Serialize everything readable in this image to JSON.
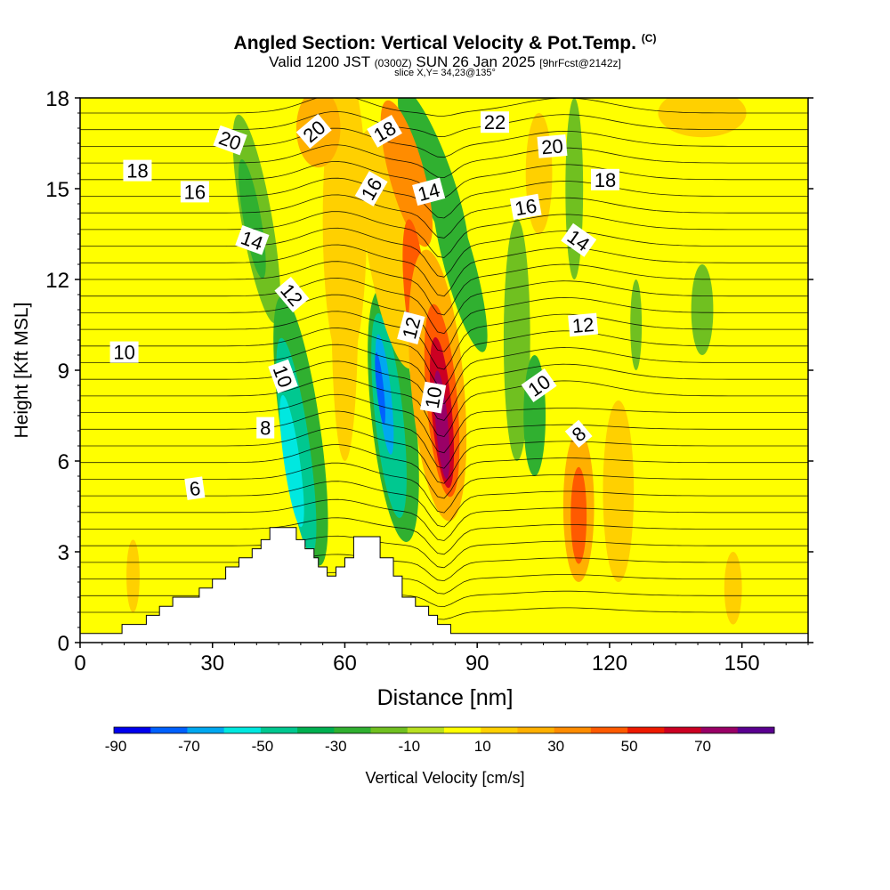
{
  "title": {
    "main": "Angled Section: Vertical Velocity & Pot.Temp.",
    "main_suffix": "(C)",
    "valid_prefix": "Valid 1200 JST",
    "valid_zulu": "(0300Z)",
    "valid_date": "SUN 26 Jan 2025",
    "forecast": "[9hrFcst@2142z]",
    "slice": "slice X,Y= 34,23@135°"
  },
  "chart_data": {
    "type": "heatmap",
    "xlabel": "Distance [nm]",
    "ylabel": "Height [Kft MSL]",
    "xlim": [
      0,
      165
    ],
    "ylim": [
      0,
      18
    ],
    "x_ticks": [
      0,
      30,
      60,
      90,
      120,
      150
    ],
    "y_ticks": [
      0,
      3,
      6,
      9,
      12,
      15,
      18
    ],
    "colorbar": {
      "label": "Vertical Velocity [cm/s]",
      "levels": [
        -90,
        -80,
        -70,
        -60,
        -50,
        -40,
        -30,
        -20,
        -10,
        0,
        10,
        20,
        30,
        40,
        50,
        60,
        70,
        80
      ],
      "tick_labels": [
        -90,
        -70,
        -50,
        -30,
        -10,
        10,
        30,
        50,
        70
      ],
      "colors": [
        "#0000ee",
        "#0060ff",
        "#00a8f0",
        "#00e8e0",
        "#00c890",
        "#00b050",
        "#30b030",
        "#70c020",
        "#b8e020",
        "#ffff00",
        "#ffd000",
        "#ffb000",
        "#ff8c00",
        "#ff5a00",
        "#ee1a00",
        "#cc0022",
        "#990066",
        "#5a0090"
      ]
    },
    "terrain": [
      [
        0,
        0.3
      ],
      [
        9.5,
        0.3
      ],
      [
        9.5,
        0.6
      ],
      [
        15,
        0.6
      ],
      [
        15,
        0.9
      ],
      [
        18,
        0.9
      ],
      [
        18,
        1.2
      ],
      [
        21,
        1.2
      ],
      [
        21,
        1.5
      ],
      [
        27,
        1.5
      ],
      [
        27,
        1.8
      ],
      [
        30,
        1.8
      ],
      [
        30,
        2.1
      ],
      [
        33,
        2.1
      ],
      [
        33,
        2.5
      ],
      [
        36,
        2.5
      ],
      [
        36,
        2.8
      ],
      [
        39,
        2.8
      ],
      [
        39,
        3.1
      ],
      [
        41,
        3.1
      ],
      [
        41,
        3.4
      ],
      [
        43,
        3.4
      ],
      [
        43,
        3.8
      ],
      [
        49,
        3.8
      ],
      [
        49,
        3.4
      ],
      [
        51,
        3.4
      ],
      [
        51,
        3.1
      ],
      [
        53,
        3.1
      ],
      [
        53,
        2.8
      ],
      [
        54,
        2.8
      ],
      [
        54,
        2.5
      ],
      [
        56,
        2.5
      ],
      [
        56,
        2.2
      ],
      [
        58,
        2.2
      ],
      [
        58,
        2.5
      ],
      [
        60,
        2.5
      ],
      [
        60,
        2.8
      ],
      [
        62,
        2.8
      ],
      [
        62,
        3.5
      ],
      [
        68,
        3.5
      ],
      [
        68,
        2.8
      ],
      [
        71,
        2.8
      ],
      [
        71,
        2.2
      ],
      [
        73,
        2.2
      ],
      [
        73,
        1.5
      ],
      [
        76,
        1.5
      ],
      [
        76,
        1.2
      ],
      [
        79,
        1.2
      ],
      [
        79,
        0.9
      ],
      [
        81,
        0.9
      ],
      [
        81,
        0.6
      ],
      [
        84,
        0.6
      ],
      [
        84,
        0.3
      ],
      [
        165,
        0.3
      ]
    ],
    "theta_contour_labels": [
      {
        "text": "6",
        "x": 26,
        "y": 5.1,
        "angle": -8
      },
      {
        "text": "8",
        "x": 42,
        "y": 7.1,
        "angle": 0
      },
      {
        "text": "8",
        "x": 113,
        "y": 6.9,
        "angle": -40
      },
      {
        "text": "10",
        "x": 10,
        "y": 9.6,
        "angle": 0
      },
      {
        "text": "10",
        "x": 46,
        "y": 8.8,
        "angle": 70
      },
      {
        "text": "10",
        "x": 80,
        "y": 8.1,
        "angle": -80
      },
      {
        "text": "10",
        "x": 104,
        "y": 8.5,
        "angle": -35
      },
      {
        "text": "12",
        "x": 48,
        "y": 11.5,
        "angle": 50
      },
      {
        "text": "12",
        "x": 75,
        "y": 10.4,
        "angle": -75
      },
      {
        "text": "12",
        "x": 114,
        "y": 10.5,
        "angle": -5
      },
      {
        "text": "14",
        "x": 39,
        "y": 13.3,
        "angle": 20
      },
      {
        "text": "14",
        "x": 79,
        "y": 14.9,
        "angle": -15
      },
      {
        "text": "14",
        "x": 113,
        "y": 13.3,
        "angle": 35
      },
      {
        "text": "16",
        "x": 26,
        "y": 14.9,
        "angle": 0
      },
      {
        "text": "16",
        "x": 66,
        "y": 15.0,
        "angle": -60
      },
      {
        "text": "16",
        "x": 101,
        "y": 14.4,
        "angle": -10
      },
      {
        "text": "18",
        "x": 13,
        "y": 15.6,
        "angle": 0
      },
      {
        "text": "18",
        "x": 69,
        "y": 16.9,
        "angle": -30
      },
      {
        "text": "18",
        "x": 119,
        "y": 15.3,
        "angle": 0
      },
      {
        "text": "20",
        "x": 34,
        "y": 16.6,
        "angle": 20
      },
      {
        "text": "20",
        "x": 53,
        "y": 16.9,
        "angle": -40
      },
      {
        "text": "20",
        "x": 107,
        "y": 16.4,
        "angle": -5
      },
      {
        "text": "22",
        "x": 94,
        "y": 17.2,
        "angle": 0
      }
    ]
  }
}
